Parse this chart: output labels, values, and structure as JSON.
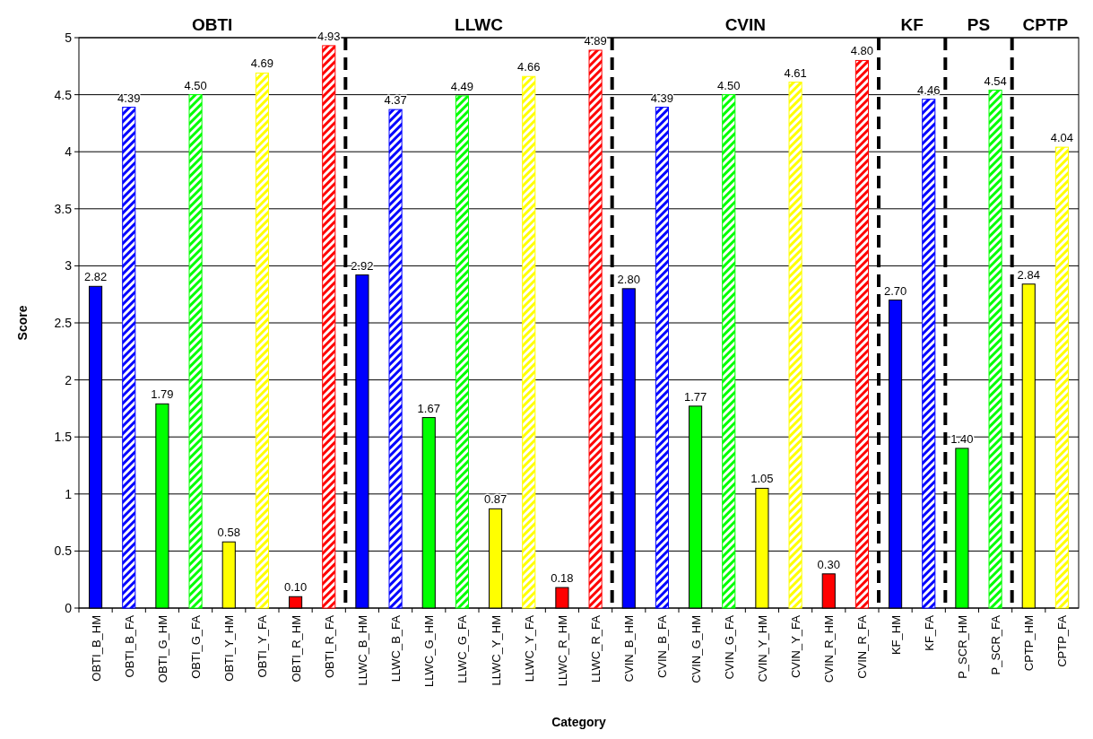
{
  "chart_data": {
    "type": "bar",
    "xlabel": "Category",
    "ylabel": "Score",
    "categories": [
      "OBTI_B_HM",
      "OBTI_B_FA",
      "OBTI_G_HM",
      "OBTI_G_FA",
      "OBTI_Y_HM",
      "OBTI_Y_FA",
      "OBTI_R_HM",
      "OBTI_R_FA",
      "LLWC_B_HM",
      "LLWC_B_FA",
      "LLWC_G_HM",
      "LLWC_G_FA",
      "LLWC_Y_HM",
      "LLWC_Y_FA",
      "LLWC_R_HM",
      "LLWC_R_FA",
      "CVIN_B_HM",
      "CVIN_B_FA",
      "CVIN_G_HM",
      "CVIN_G_FA",
      "CVIN_Y_HM",
      "CVIN_Y_FA",
      "CVIN_R_HM",
      "CVIN_R_FA",
      "KF_HM",
      "KF_FA",
      "P_SCR_HM",
      "P_SCR_FA",
      "CPTP_HM",
      "CPTP_FA"
    ],
    "series": [
      {
        "values": [
          2.82,
          null,
          1.79,
          null,
          0.58,
          null,
          0.1,
          null,
          2.92,
          null,
          1.67,
          null,
          0.87,
          null,
          0.18,
          null,
          2.8,
          null,
          1.77,
          null,
          1.05,
          null,
          0.3,
          null,
          2.7,
          null,
          1.4,
          null,
          2.84,
          null
        ],
        "colors": [
          "#0000ff",
          null,
          "#00ff00",
          null,
          "#ffff00",
          null,
          "#ff0000",
          null,
          "#0000ff",
          null,
          "#00ff00",
          null,
          "#ffff00",
          null,
          "#ff0000",
          null,
          "#0000ff",
          null,
          "#00ff00",
          null,
          "#ffff00",
          null,
          "#ff0000",
          null,
          "#0000ff",
          null,
          "#00ff00",
          null,
          "#ffff00",
          null
        ],
        "value_labels": [
          "2.82",
          null,
          "1.79",
          null,
          "0.58",
          null,
          "0.10",
          null,
          "2.92",
          null,
          "1.67",
          null,
          "0.87",
          null,
          "0.18",
          null,
          "2.80",
          null,
          "1.77",
          null,
          "1.05",
          null,
          "0.30",
          null,
          "2.70",
          null,
          "1.40",
          null,
          "2.84",
          null
        ]
      },
      {
        "values": [
          null,
          4.39,
          null,
          4.5,
          null,
          4.69,
          null,
          4.93,
          null,
          4.37,
          null,
          4.49,
          null,
          4.66,
          null,
          4.89,
          null,
          4.39,
          null,
          4.5,
          null,
          4.61,
          null,
          4.8,
          null,
          4.46,
          null,
          4.54,
          null,
          4.04
        ],
        "colors": [
          null,
          "#0000ff",
          null,
          "#00ff00",
          null,
          "#ffff00",
          null,
          "#ff0000",
          null,
          "#0000ff",
          null,
          "#00ff00",
          null,
          "#ffff00",
          null,
          "#ff0000",
          null,
          "#0000ff",
          null,
          "#00ff00",
          null,
          "#ffff00",
          null,
          "#ff0000",
          null,
          "#0000ff",
          null,
          "#00ff00",
          null,
          "#ffff00"
        ],
        "value_labels": [
          null,
          "4.39",
          null,
          "4.50",
          null,
          "4.69",
          null,
          "4.93",
          null,
          "4.37",
          null,
          "4.49",
          null,
          "4.66",
          null,
          "4.89",
          null,
          "4.39",
          null,
          "4.50",
          null,
          "4.61",
          null,
          "4.80",
          null,
          "4.46",
          null,
          "4.54",
          null,
          "4.04"
        ]
      }
    ],
    "ylim": [
      0,
      5
    ],
    "yticks": [
      0,
      0.5,
      1,
      1.5,
      2,
      2.5,
      3,
      3.5,
      4,
      4.5,
      5
    ],
    "grid": "y",
    "annotations": [
      "OBTI",
      "LLWC",
      "CVIN",
      "KF",
      "PS",
      "CPTP"
    ]
  }
}
